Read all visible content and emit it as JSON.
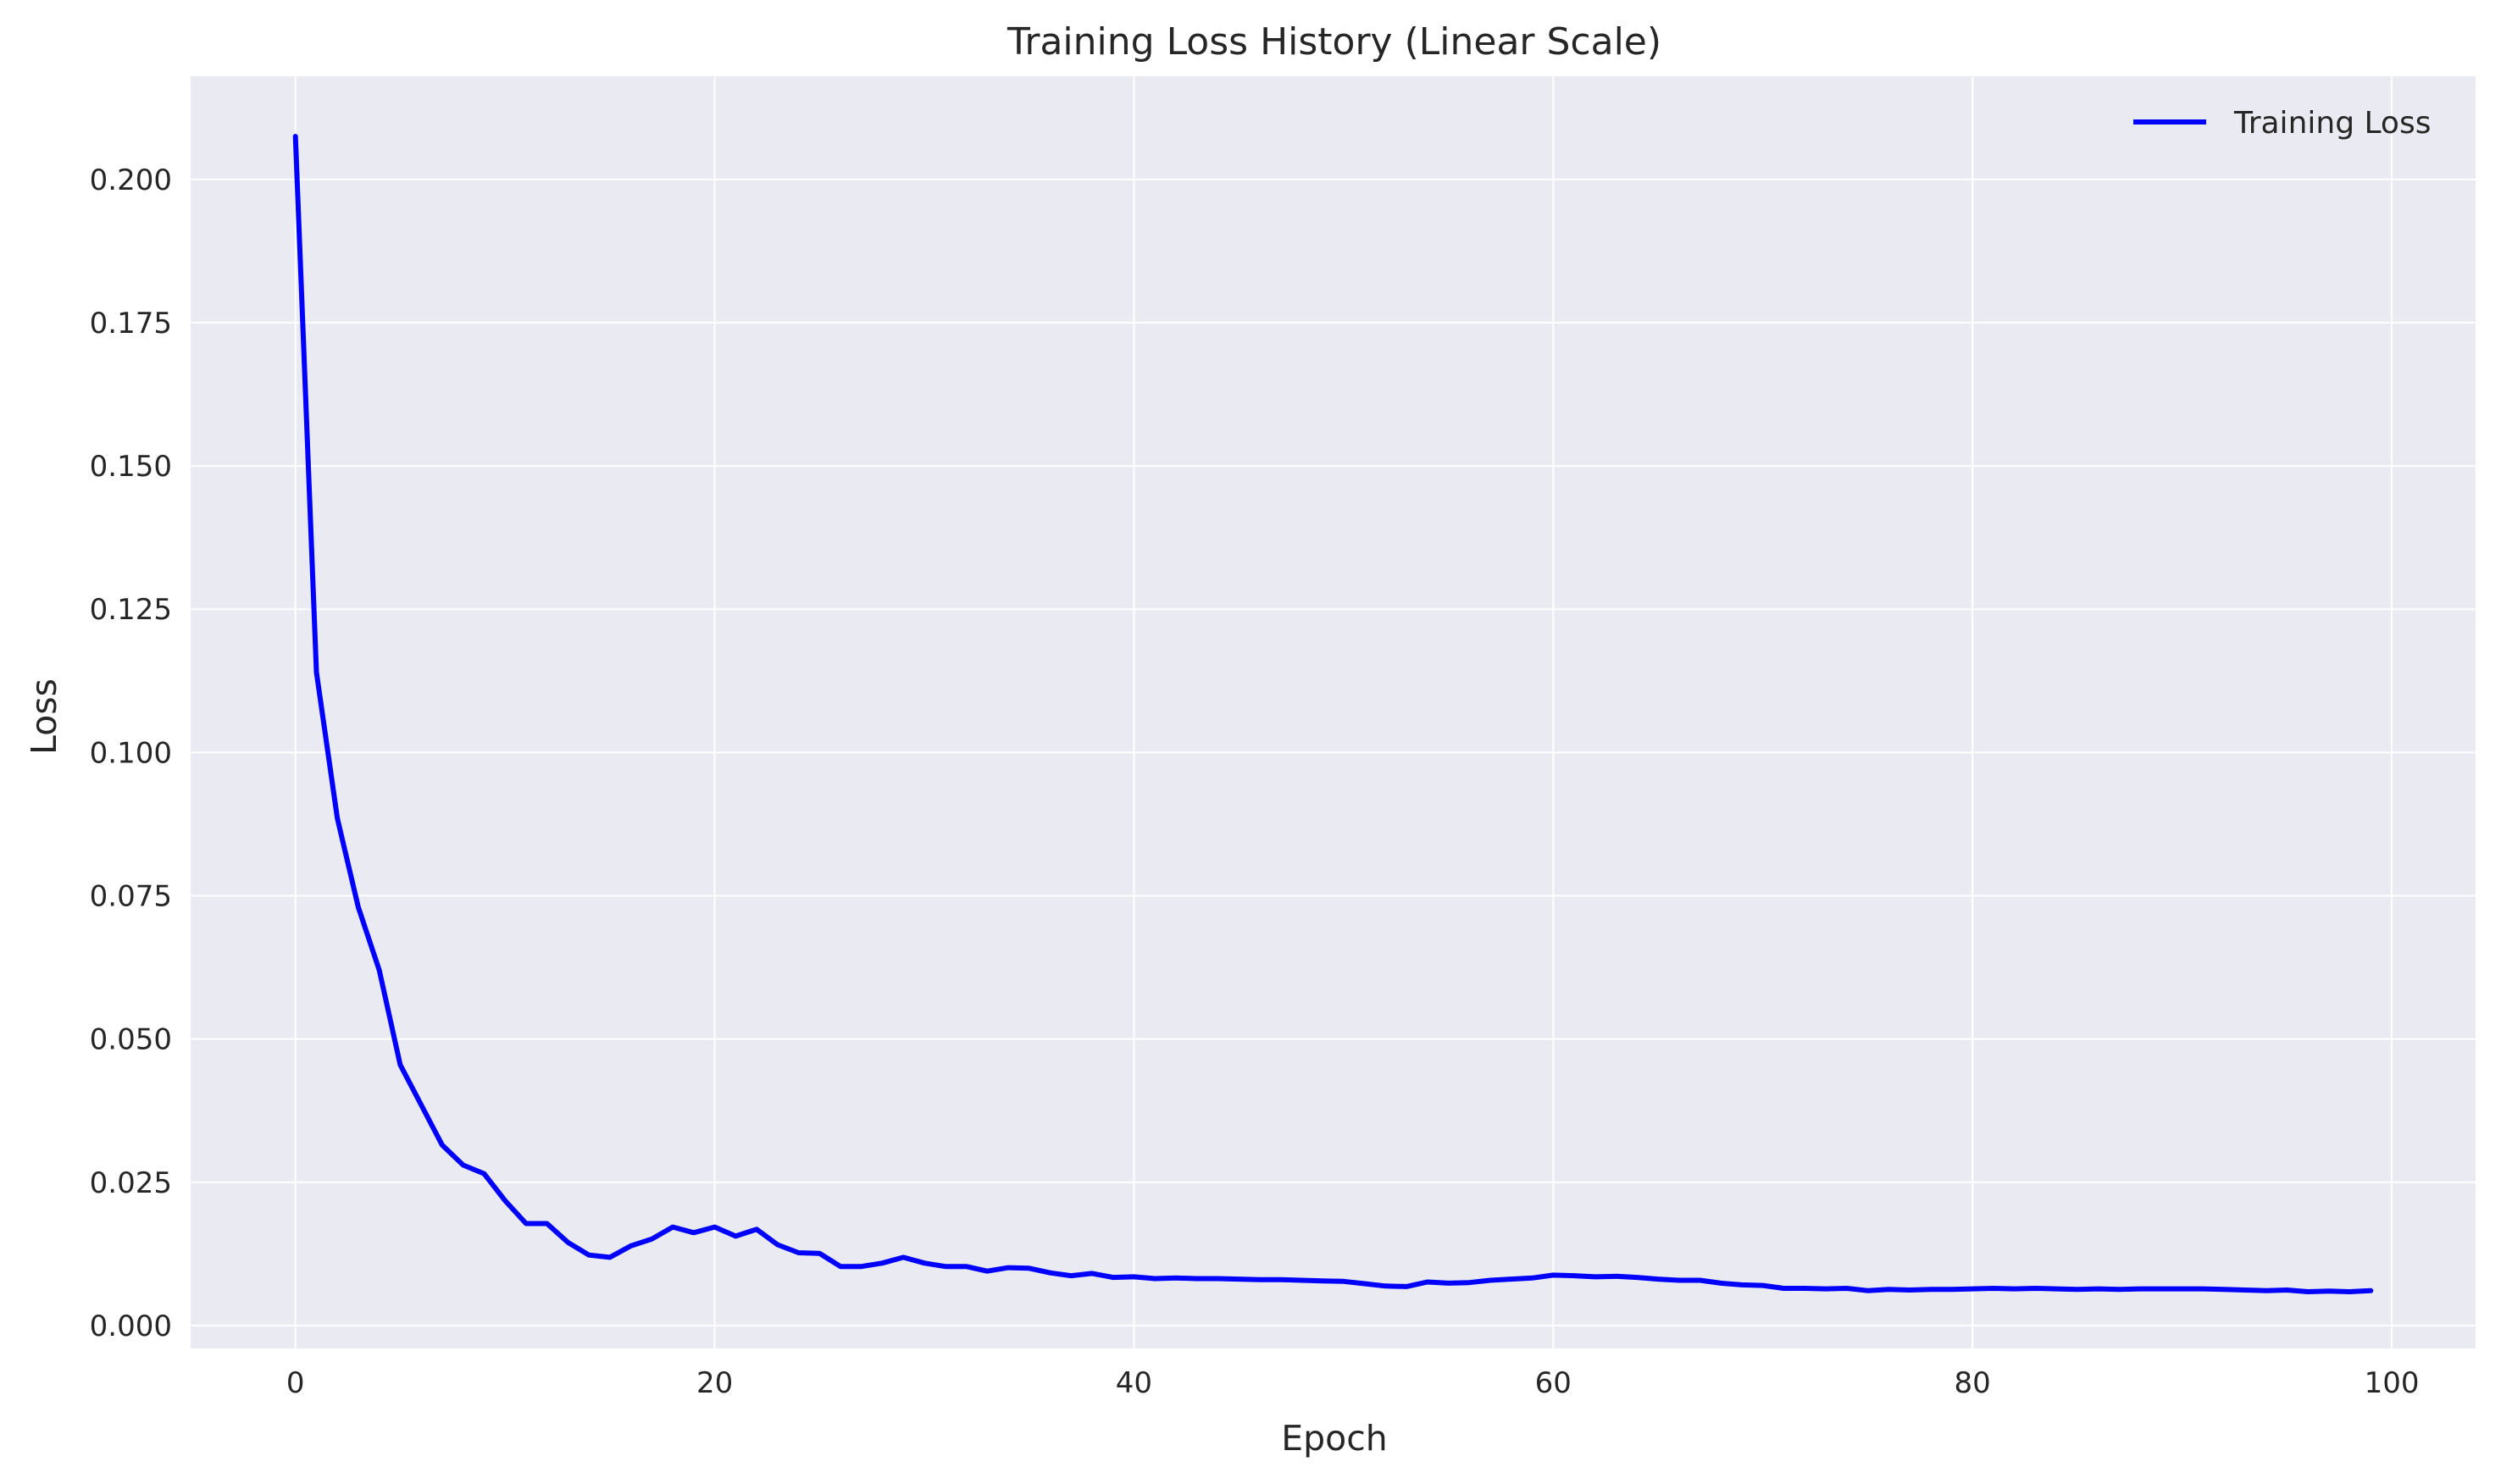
{
  "chart_data": {
    "type": "line",
    "title": "Training Loss History (Linear Scale)",
    "xlabel": "Epoch",
    "ylabel": "Loss",
    "xlim": [
      -5,
      104
    ],
    "ylim": [
      -0.004,
      0.218
    ],
    "xticks": [
      0,
      20,
      40,
      60,
      80,
      100
    ],
    "xtick_labels": [
      "0",
      "20",
      "40",
      "60",
      "80",
      "100"
    ],
    "yticks": [
      0,
      0.025,
      0.05,
      0.075,
      0.1,
      0.125,
      0.15,
      0.175,
      0.2
    ],
    "ytick_labels": [
      "0.000",
      "0.025",
      "0.050",
      "0.075",
      "0.100",
      "0.125",
      "0.150",
      "0.175",
      "0.200"
    ],
    "grid": true,
    "legend_position": "top-right",
    "background_color": "#eaeaf2",
    "series": [
      {
        "name": "Training Loss",
        "color": "#0000ff",
        "x": [
          0,
          1,
          2,
          3,
          4,
          5,
          6,
          7,
          8,
          9,
          10,
          11,
          12,
          13,
          14,
          15,
          16,
          17,
          18,
          19,
          20,
          21,
          22,
          23,
          24,
          25,
          26,
          27,
          28,
          29,
          30,
          31,
          32,
          33,
          34,
          35,
          36,
          37,
          38,
          39,
          40,
          41,
          42,
          43,
          44,
          45,
          46,
          47,
          48,
          49,
          50,
          51,
          52,
          53,
          54,
          55,
          56,
          57,
          58,
          59,
          60,
          61,
          62,
          63,
          64,
          65,
          66,
          67,
          68,
          69,
          70,
          71,
          72,
          73,
          74,
          75,
          76,
          77,
          78,
          79,
          80,
          81,
          82,
          83,
          84,
          85,
          86,
          87,
          88,
          89,
          90,
          91,
          92,
          93,
          94,
          95,
          96,
          97,
          98,
          99
        ],
        "values": [
          0.2075,
          0.114,
          0.0885,
          0.073,
          0.062,
          0.0455,
          0.0385,
          0.0315,
          0.028,
          0.0265,
          0.0218,
          0.0178,
          0.0178,
          0.0145,
          0.0123,
          0.0119,
          0.0139,
          0.0151,
          0.0172,
          0.0162,
          0.0172,
          0.0156,
          0.0168,
          0.0141,
          0.0127,
          0.0126,
          0.0103,
          0.0103,
          0.0109,
          0.0119,
          0.0109,
          0.0103,
          0.0103,
          0.0095,
          0.0101,
          0.01,
          0.0092,
          0.0087,
          0.0091,
          0.0084,
          0.0085,
          0.0082,
          0.0083,
          0.0082,
          0.0082,
          0.0081,
          0.008,
          0.008,
          0.0079,
          0.0078,
          0.0077,
          0.0073,
          0.0069,
          0.0068,
          0.0076,
          0.0074,
          0.0075,
          0.0079,
          0.0081,
          0.0083,
          0.0088,
          0.0087,
          0.0085,
          0.0086,
          0.0084,
          0.0081,
          0.0079,
          0.0079,
          0.0074,
          0.0071,
          0.007,
          0.0065,
          0.0065,
          0.0064,
          0.0065,
          0.0061,
          0.0063,
          0.0062,
          0.0063,
          0.0063,
          0.0064,
          0.0065,
          0.0064,
          0.0065,
          0.0064,
          0.0063,
          0.0064,
          0.0063,
          0.0064,
          0.0064,
          0.0064,
          0.0064,
          0.0063,
          0.0062,
          0.0061,
          0.0062,
          0.0059,
          0.006,
          0.0059,
          0.0061
        ]
      }
    ]
  }
}
